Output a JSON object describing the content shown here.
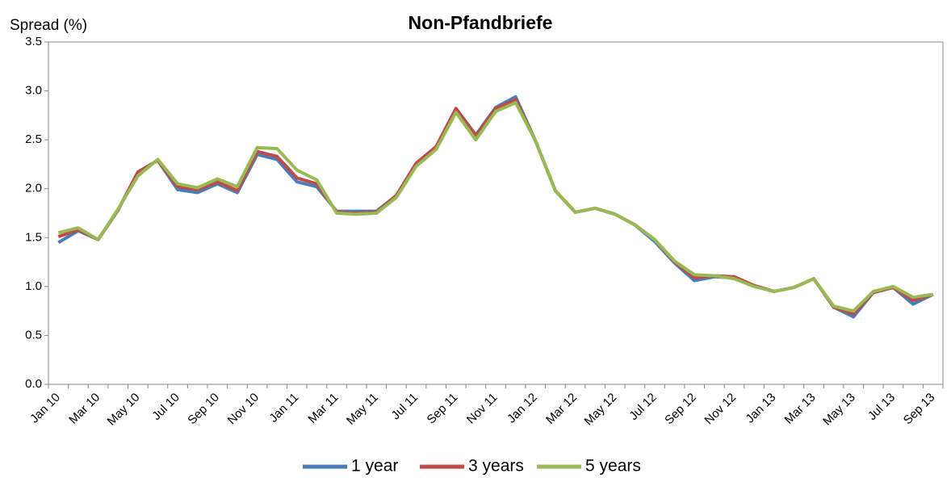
{
  "chart_data": {
    "type": "line",
    "title": "Non-Pfandbriefe",
    "y_label": "Spread (%)",
    "categories": [
      "Jan 10",
      null,
      "Mar 10",
      null,
      "May 10",
      null,
      "Jul 10",
      null,
      "Sep 10",
      null,
      "Nov 10",
      null,
      "Jan 11",
      null,
      "Mar 11",
      null,
      "May 11",
      null,
      "Jul 11",
      null,
      "Sep 11",
      null,
      "Nov 11",
      null,
      "Jan 12",
      null,
      "Mar 12",
      null,
      "May 12",
      null,
      "Jul 12",
      null,
      "Sep 12",
      null,
      "Nov 12",
      null,
      "Jan 13",
      null,
      "Mar 13",
      null,
      "May 13",
      null,
      "Jul 13",
      null,
      "Sep 13"
    ],
    "series": [
      {
        "name": "1 year",
        "color": "#4a7ebb",
        "values": [
          1.45,
          1.57,
          1.48,
          1.78,
          2.17,
          2.29,
          1.99,
          1.96,
          2.05,
          1.96,
          2.35,
          2.3,
          2.07,
          2.02,
          1.77,
          1.77,
          1.77,
          1.93,
          2.26,
          2.42,
          2.82,
          2.55,
          2.83,
          2.94,
          2.49,
          1.98,
          1.76,
          1.8,
          1.74,
          1.63,
          1.46,
          1.24,
          1.06,
          1.1,
          1.09,
          1.01,
          0.95,
          0.99,
          1.08,
          0.79,
          0.69,
          0.94,
          0.99,
          0.82,
          0.92
        ]
      },
      {
        "name": "3 years",
        "color": "#be4b48",
        "values": [
          1.51,
          1.58,
          1.48,
          1.78,
          2.17,
          2.29,
          2.02,
          1.99,
          2.07,
          1.98,
          2.38,
          2.33,
          2.11,
          2.05,
          1.76,
          1.75,
          1.76,
          1.93,
          2.26,
          2.43,
          2.82,
          2.54,
          2.82,
          2.91,
          2.49,
          1.98,
          1.76,
          1.8,
          1.74,
          1.63,
          1.48,
          1.25,
          1.09,
          1.11,
          1.1,
          1.01,
          0.95,
          0.99,
          1.08,
          0.79,
          0.72,
          0.94,
          0.99,
          0.86,
          0.92
        ]
      },
      {
        "name": "5 years",
        "color": "#98b954",
        "values": [
          1.55,
          1.6,
          1.48,
          1.79,
          2.13,
          2.3,
          2.05,
          2.01,
          2.1,
          2.02,
          2.42,
          2.41,
          2.19,
          2.09,
          1.75,
          1.74,
          1.75,
          1.91,
          2.23,
          2.4,
          2.78,
          2.5,
          2.79,
          2.88,
          2.49,
          1.98,
          1.76,
          1.8,
          1.74,
          1.63,
          1.48,
          1.26,
          1.12,
          1.11,
          1.08,
          1.0,
          0.95,
          0.99,
          1.08,
          0.8,
          0.75,
          0.95,
          1.0,
          0.89,
          0.92
        ]
      }
    ],
    "ylim": [
      0,
      3.5
    ],
    "yticks": [
      {
        "value": 0,
        "label": "0.0"
      },
      0.5,
      {
        "value": 1,
        "label": "1.0"
      },
      1.5,
      {
        "value": 2,
        "label": "2.0"
      },
      2.5,
      {
        "value": 3,
        "label": "3.0"
      },
      3.5
    ],
    "grid": false,
    "legend": "bottom"
  }
}
